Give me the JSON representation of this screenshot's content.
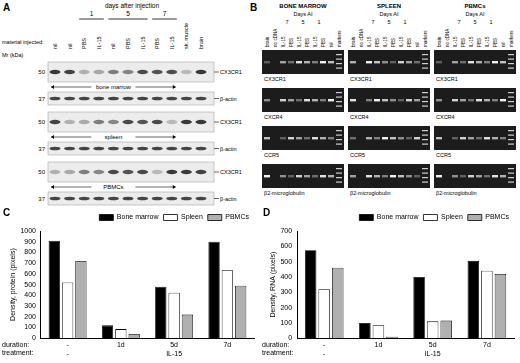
{
  "panels": {
    "A": {
      "label": "A",
      "header": "days after injection",
      "days": [
        "1",
        "5",
        "7"
      ],
      "row_label": "material injected:",
      "lanes": [
        "nil",
        "nil",
        "PBS",
        "IL-15",
        "nil",
        "PBS",
        "IL-15",
        "PBS",
        "IL-15",
        "sk. muscle",
        "brain"
      ],
      "mw_label": "Mr (kDa)",
      "markers": [
        50,
        37
      ],
      "bands": [
        "CX3CR1",
        "β-actin"
      ],
      "tissues": [
        "bone marrow",
        "spleen",
        "PBMCs"
      ]
    },
    "B": {
      "label": "B",
      "columns": [
        "BONE MARROW",
        "SPLEEN",
        "PBMCs"
      ],
      "header": "Days AI",
      "days": [
        "7",
        "5",
        "1"
      ],
      "lanes": [
        "brain",
        "no cDNA",
        "IL-15",
        "PBS",
        "IL-15",
        "PBS",
        "IL-15",
        "PBS",
        "nil",
        "markers"
      ],
      "genes": [
        "CX3CR1",
        "CXCR4",
        "CCR5",
        "β2-microglobulin"
      ]
    }
  },
  "chart_data": [
    {
      "type": "bar",
      "panel_label": "C",
      "ylabel": "Density, protein (pixels)",
      "categories": [
        "-",
        "1d",
        "5d",
        "7d"
      ],
      "treatment": [
        "-",
        null,
        "IL-15",
        null
      ],
      "row_labels": [
        "duration:",
        "treatment:"
      ],
      "series": [
        {
          "name": "Bone marrow",
          "color": "#000000",
          "values": [
            910,
            120,
            480,
            900
          ]
        },
        {
          "name": "Spleen",
          "color": "#ffffff",
          "values": [
            520,
            85,
            425,
            635
          ]
        },
        {
          "name": "PBMCs",
          "color": "#b0b0b0",
          "values": [
            720,
            40,
            220,
            490
          ]
        }
      ],
      "ylim": [
        0,
        1000
      ],
      "yticks": [
        0,
        100,
        200,
        300,
        400,
        500,
        600,
        700,
        800,
        900,
        1000
      ],
      "grid": false,
      "legend": "top-right"
    },
    {
      "type": "bar",
      "panel_label": "D",
      "ylabel": "Density, RNA (pixels)",
      "categories": [
        "-",
        "1d",
        "5d",
        "7d"
      ],
      "treatment": [
        "-",
        null,
        "IL-15",
        null
      ],
      "row_labels": [
        "duration:",
        "treatment:"
      ],
      "series": [
        {
          "name": "Bone marrow",
          "color": "#000000",
          "values": [
            575,
            100,
            400,
            505
          ]
        },
        {
          "name": "Spleen",
          "color": "#ffffff",
          "values": [
            320,
            85,
            110,
            440
          ]
        },
        {
          "name": "PBMCs",
          "color": "#b0b0b0",
          "values": [
            460,
            10,
            115,
            420
          ]
        }
      ],
      "ylim": [
        0,
        700
      ],
      "yticks": [
        0,
        100,
        200,
        300,
        400,
        500,
        600,
        700
      ],
      "grid": false,
      "legend": "top-right"
    }
  ]
}
